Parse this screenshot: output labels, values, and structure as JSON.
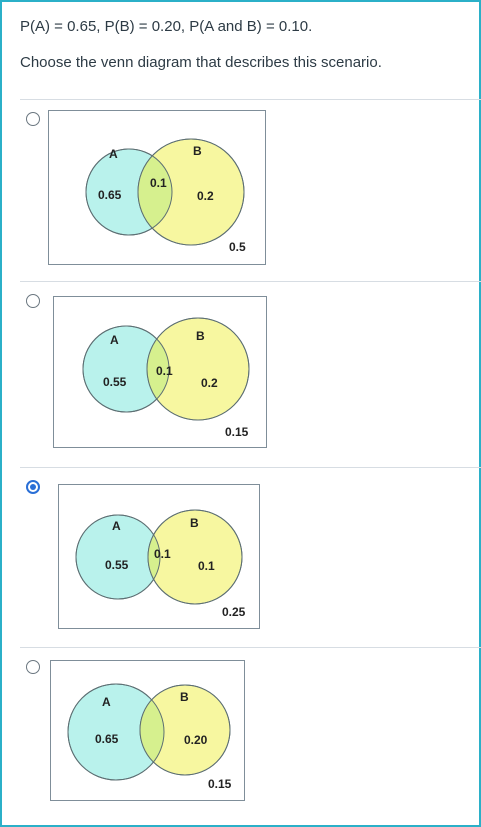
{
  "question": {
    "text": "P(A) = 0.65, P(B) = 0.20, P(A and B) = 0.10.",
    "prompt": "Choose the venn diagram that describes this scenario."
  },
  "options": [
    {
      "selected": false,
      "label_a": "A",
      "label_b": "B",
      "only_a": "0.65",
      "overlap": "0.1",
      "only_b": "0.2",
      "outside": "0.5"
    },
    {
      "selected": false,
      "label_a": "A",
      "label_b": "B",
      "only_a": "0.55",
      "overlap": "0.1",
      "only_b": "0.2",
      "outside": "0.15"
    },
    {
      "selected": true,
      "label_a": "A",
      "label_b": "B",
      "only_a": "0.55",
      "overlap": "0.1",
      "only_b": "0.1",
      "outside": "0.25"
    },
    {
      "selected": false,
      "label_a": "A",
      "label_b": "B",
      "only_a": "0.65",
      "overlap": "",
      "only_b": "0.20",
      "outside": "0.15"
    }
  ],
  "colors": {
    "circle_a": "#b9f2ec",
    "circle_b": "#f7f7a0",
    "overlap": "#d6f08e",
    "accent": "#2a6fd6",
    "frame": "#2bb0c8"
  }
}
